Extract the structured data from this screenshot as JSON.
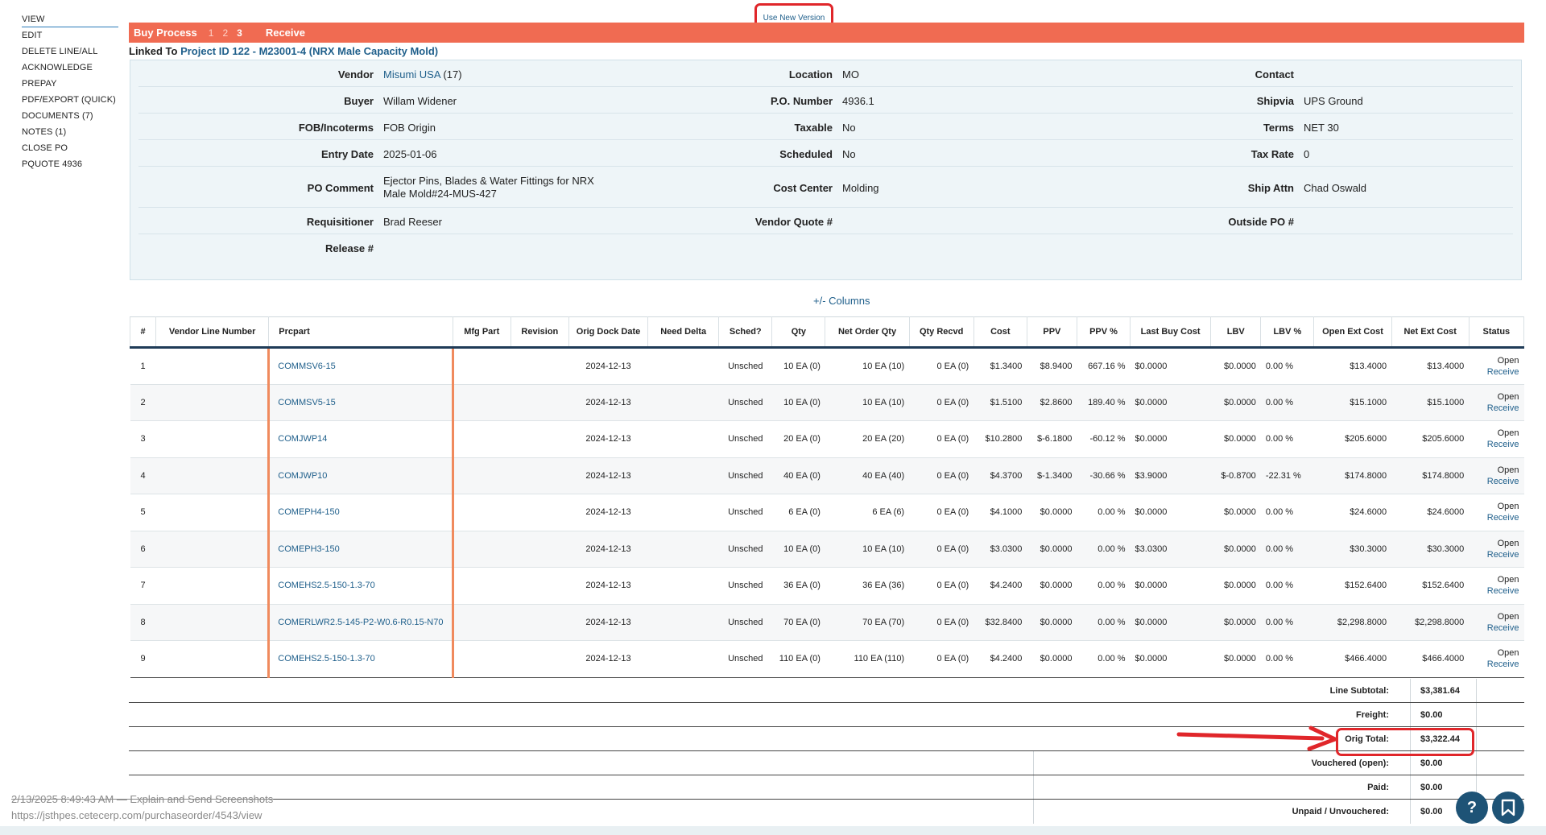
{
  "nav": {
    "items": [
      "VIEW",
      "EDIT",
      "DELETE LINE/ALL",
      "ACKNOWLEDGE",
      "PREPAY",
      "PDF/EXPORT (QUICK)",
      "DOCUMENTS (7)",
      "NOTES (1)",
      "CLOSE PO",
      "PQUOTE 4936"
    ]
  },
  "top": {
    "new_version": "Use New Version",
    "buy_process": "Buy Process",
    "steps": [
      "1",
      "2",
      "3"
    ],
    "receive": "Receive",
    "linked_prefix": "Linked To",
    "linked_link": "Project ID 122 - M23001-4 (NRX Male Capacity Mold)"
  },
  "info": {
    "vendor_label": "Vendor",
    "vendor_link": "Misumi USA",
    "vendor_suffix": " (17)",
    "location_label": "Location",
    "location": "MO",
    "contact_label": "Contact",
    "contact": "",
    "buyer_label": "Buyer",
    "buyer": "Willam Widener",
    "po_number_label": "P.O. Number",
    "po_number": "4936.1",
    "shipvia_label": "Shipvia",
    "shipvia": "UPS Ground",
    "fob_label": "FOB/Incoterms",
    "fob": "FOB Origin",
    "taxable_label": "Taxable",
    "taxable": "No",
    "terms_label": "Terms",
    "terms": "NET 30",
    "entry_date_label": "Entry Date",
    "entry_date": "2025-01-06",
    "scheduled_label": "Scheduled",
    "scheduled": "No",
    "tax_rate_label": "Tax Rate",
    "tax_rate": "0",
    "po_comment_label": "PO Comment",
    "po_comment_1": "Ejector Pins, Blades & Water Fittings for NRX",
    "po_comment_2": "Male Mold#24-MUS-427",
    "cost_center_label": "Cost Center",
    "cost_center": "Molding",
    "ship_attn_label": "Ship Attn",
    "ship_attn": "Chad Oswald",
    "requisitioner_label": "Requisitioner",
    "requisitioner": "Brad Reeser",
    "vendor_quote_label": "Vendor Quote #",
    "vendor_quote": "",
    "outside_po_label": "Outside PO #",
    "outside_po": "",
    "release_label": "Release #",
    "release": ""
  },
  "columns_toggle": "+/- Columns",
  "table": {
    "headers": [
      "#",
      "Vendor Line Number",
      "Prcpart",
      "Mfg Part",
      "Revision",
      "Orig Dock Date",
      "Need Delta",
      "Sched?",
      "Qty",
      "Net Order Qty",
      "Qty Recvd",
      "Cost",
      "PPV",
      "PPV %",
      "Last Buy Cost",
      "LBV",
      "LBV %",
      "Open Ext Cost",
      "Net Ext Cost",
      "Status"
    ],
    "rows": [
      {
        "n": "1",
        "vln": "",
        "part": "COMMSV6-15",
        "mfg": "",
        "rev": "",
        "dock": "2024-12-13",
        "delta": "",
        "sched": "Unsched",
        "qty": "10 EA (0)",
        "net_qty": "10 EA (10)",
        "recvd": "0 EA (0)",
        "cost": "$1.3400",
        "ppv": "$8.9400",
        "ppv_pct": "667.16 %",
        "last_buy": "$0.0000",
        "lbv": "$0.0000",
        "lbv_pct": "0.00 %",
        "open_ext": "$13.4000",
        "net_ext": "$13.4000",
        "status": "Open",
        "action": "Receive"
      },
      {
        "n": "2",
        "vln": "",
        "part": "COMMSV5-15",
        "mfg": "",
        "rev": "",
        "dock": "2024-12-13",
        "delta": "",
        "sched": "Unsched",
        "qty": "10 EA (0)",
        "net_qty": "10 EA (10)",
        "recvd": "0 EA (0)",
        "cost": "$1.5100",
        "ppv": "$2.8600",
        "ppv_pct": "189.40 %",
        "last_buy": "$0.0000",
        "lbv": "$0.0000",
        "lbv_pct": "0.00 %",
        "open_ext": "$15.1000",
        "net_ext": "$15.1000",
        "status": "Open",
        "action": "Receive"
      },
      {
        "n": "3",
        "vln": "",
        "part": "COMJWP14",
        "mfg": "",
        "rev": "",
        "dock": "2024-12-13",
        "delta": "",
        "sched": "Unsched",
        "qty": "20 EA (0)",
        "net_qty": "20 EA (20)",
        "recvd": "0 EA (0)",
        "cost": "$10.2800",
        "ppv": "$-6.1800",
        "ppv_pct": "-60.12 %",
        "last_buy": "$0.0000",
        "lbv": "$0.0000",
        "lbv_pct": "0.00 %",
        "open_ext": "$205.6000",
        "net_ext": "$205.6000",
        "status": "Open",
        "action": "Receive"
      },
      {
        "n": "4",
        "vln": "",
        "part": "COMJWP10",
        "mfg": "",
        "rev": "",
        "dock": "2024-12-13",
        "delta": "",
        "sched": "Unsched",
        "qty": "40 EA (0)",
        "net_qty": "40 EA (40)",
        "recvd": "0 EA (0)",
        "cost": "$4.3700",
        "ppv": "$-1.3400",
        "ppv_pct": "-30.66 %",
        "last_buy": "$3.9000",
        "lbv": "$-0.8700",
        "lbv_pct": "-22.31 %",
        "open_ext": "$174.8000",
        "net_ext": "$174.8000",
        "status": "Open",
        "action": "Receive"
      },
      {
        "n": "5",
        "vln": "",
        "part": "COMEPH4-150",
        "mfg": "",
        "rev": "",
        "dock": "2024-12-13",
        "delta": "",
        "sched": "Unsched",
        "qty": "6 EA (0)",
        "net_qty": "6 EA (6)",
        "recvd": "0 EA (0)",
        "cost": "$4.1000",
        "ppv": "$0.0000",
        "ppv_pct": "0.00 %",
        "last_buy": "$0.0000",
        "lbv": "$0.0000",
        "lbv_pct": "0.00 %",
        "open_ext": "$24.6000",
        "net_ext": "$24.6000",
        "status": "Open",
        "action": "Receive"
      },
      {
        "n": "6",
        "vln": "",
        "part": "COMEPH3-150",
        "mfg": "",
        "rev": "",
        "dock": "2024-12-13",
        "delta": "",
        "sched": "Unsched",
        "qty": "10 EA (0)",
        "net_qty": "10 EA (10)",
        "recvd": "0 EA (0)",
        "cost": "$3.0300",
        "ppv": "$0.0000",
        "ppv_pct": "0.00 %",
        "last_buy": "$3.0300",
        "lbv": "$0.0000",
        "lbv_pct": "0.00 %",
        "open_ext": "$30.3000",
        "net_ext": "$30.3000",
        "status": "Open",
        "action": "Receive"
      },
      {
        "n": "7",
        "vln": "",
        "part": "COMEHS2.5-150-1.3-70",
        "mfg": "",
        "rev": "",
        "dock": "2024-12-13",
        "delta": "",
        "sched": "Unsched",
        "qty": "36 EA (0)",
        "net_qty": "36 EA (36)",
        "recvd": "0 EA (0)",
        "cost": "$4.2400",
        "ppv": "$0.0000",
        "ppv_pct": "0.00 %",
        "last_buy": "$0.0000",
        "lbv": "$0.0000",
        "lbv_pct": "0.00 %",
        "open_ext": "$152.6400",
        "net_ext": "$152.6400",
        "status": "Open",
        "action": "Receive"
      },
      {
        "n": "8",
        "vln": "",
        "part": "COMERLWR2.5-145-P2-W0.6-R0.15-N70",
        "mfg": "",
        "rev": "",
        "dock": "2024-12-13",
        "delta": "",
        "sched": "Unsched",
        "qty": "70 EA (0)",
        "net_qty": "70 EA (70)",
        "recvd": "0 EA (0)",
        "cost": "$32.8400",
        "ppv": "$0.0000",
        "ppv_pct": "0.00 %",
        "last_buy": "$0.0000",
        "lbv": "$0.0000",
        "lbv_pct": "0.00 %",
        "open_ext": "$2,298.8000",
        "net_ext": "$2,298.8000",
        "status": "Open",
        "action": "Receive"
      },
      {
        "n": "9",
        "vln": "",
        "part": "COMEHS2.5-150-1.3-70",
        "mfg": "",
        "rev": "",
        "dock": "2024-12-13",
        "delta": "",
        "sched": "Unsched",
        "qty": "110 EA (0)",
        "net_qty": "110 EA (110)",
        "recvd": "0 EA (0)",
        "cost": "$4.2400",
        "ppv": "$0.0000",
        "ppv_pct": "0.00 %",
        "last_buy": "$0.0000",
        "lbv": "$0.0000",
        "lbv_pct": "0.00 %",
        "open_ext": "$466.4000",
        "net_ext": "$466.4000",
        "status": "Open",
        "action": "Receive"
      }
    ]
  },
  "totals": [
    {
      "label": "Line Subtotal:",
      "value": "$3,381.64"
    },
    {
      "label": "Freight:",
      "value": "$0.00"
    },
    {
      "label": "Orig Total:",
      "value": "$3,322.44"
    },
    {
      "label": "Vouchered (open):",
      "value": "$0.00"
    },
    {
      "label": "Paid:",
      "value": "$0.00"
    },
    {
      "label": "Unpaid / Unvouchered:",
      "value": "$0.00"
    }
  ],
  "footer": {
    "line1": "2/13/2025 8:49:43 AM — Explain and Send Screenshots",
    "line2": "https://jsthpes.cetecerp.com/purchaseorder/4543/view"
  },
  "icons": {
    "help": "?",
    "bookmark": "bookmark-icon"
  },
  "colors": {
    "process_bar": "#f06b52",
    "link": "#1f5f8b",
    "highlight": "#e0262a",
    "fab": "#1e5376"
  }
}
